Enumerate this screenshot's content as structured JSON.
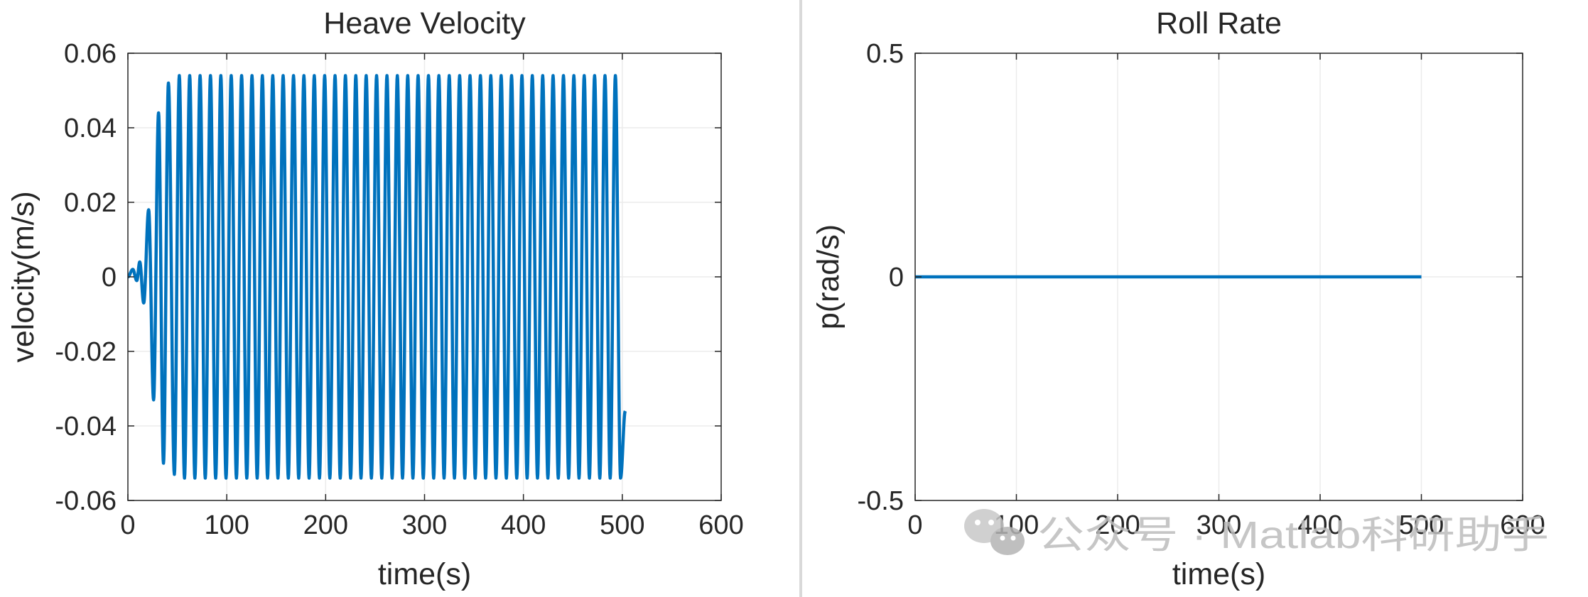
{
  "colors": {
    "series": "#0072BD",
    "axis": "#262626",
    "grid": "#ebebeb",
    "divider": "#d9d9d9"
  },
  "watermark": {
    "icon": "wechat-icon",
    "text": "公众号 · Matlab科研助手"
  },
  "chart_data": [
    {
      "type": "line",
      "title": "Heave Velocity",
      "xlabel": "time(s)",
      "ylabel": "velocity(m/s)",
      "xlim": [
        0,
        600
      ],
      "ylim": [
        -0.06,
        0.06
      ],
      "xticks": [
        0,
        100,
        200,
        300,
        400,
        500,
        600
      ],
      "xtick_labels": [
        "0",
        "100",
        "200",
        "300",
        "400",
        "500",
        "600"
      ],
      "yticks": [
        -0.06,
        -0.04,
        -0.02,
        0,
        0.02,
        0.04,
        0.06
      ],
      "ytick_labels": [
        "-0.06",
        "-0.04",
        "-0.02",
        "0",
        "0.02",
        "0.04",
        "0.06"
      ],
      "grid": true,
      "series": [
        {
          "x_range": [
            0,
            503
          ],
          "shape": "oscillation at about 0.1 Hz growing from 0 to a steady amplitude",
          "steady_amplitude": 0.054,
          "period": 10.5,
          "end_value": -0.036,
          "peaks": [
            {
              "x": 5,
              "y": 0.002
            },
            {
              "x": 12,
              "y": 0.004
            },
            {
              "x": 21,
              "y": 0.018
            },
            {
              "x": 31,
              "y": 0.044
            },
            {
              "x": 41,
              "y": 0.052
            },
            {
              "x": 52,
              "y": 0.054
            }
          ],
          "troughs": [
            {
              "x": 9,
              "y": -0.001
            },
            {
              "x": 16,
              "y": -0.007
            },
            {
              "x": 26,
              "y": -0.033
            },
            {
              "x": 36,
              "y": -0.05
            },
            {
              "x": 47,
              "y": -0.053
            }
          ]
        }
      ]
    },
    {
      "type": "line",
      "title": "Roll Rate",
      "xlabel": "time(s)",
      "ylabel": "p(rad/s)",
      "xlim": [
        0,
        600
      ],
      "ylim": [
        -0.5,
        0.5
      ],
      "xticks": [
        0,
        100,
        200,
        300,
        400,
        500,
        600
      ],
      "xtick_labels": [
        "0",
        "100",
        "200",
        "300",
        "400",
        "500",
        "600"
      ],
      "yticks": [
        -0.5,
        0,
        0.5
      ],
      "ytick_labels": [
        "-0.5",
        "0",
        "0.5"
      ],
      "grid": true,
      "series": [
        {
          "x": [
            0,
            500
          ],
          "y": [
            0,
            0
          ]
        }
      ]
    }
  ]
}
